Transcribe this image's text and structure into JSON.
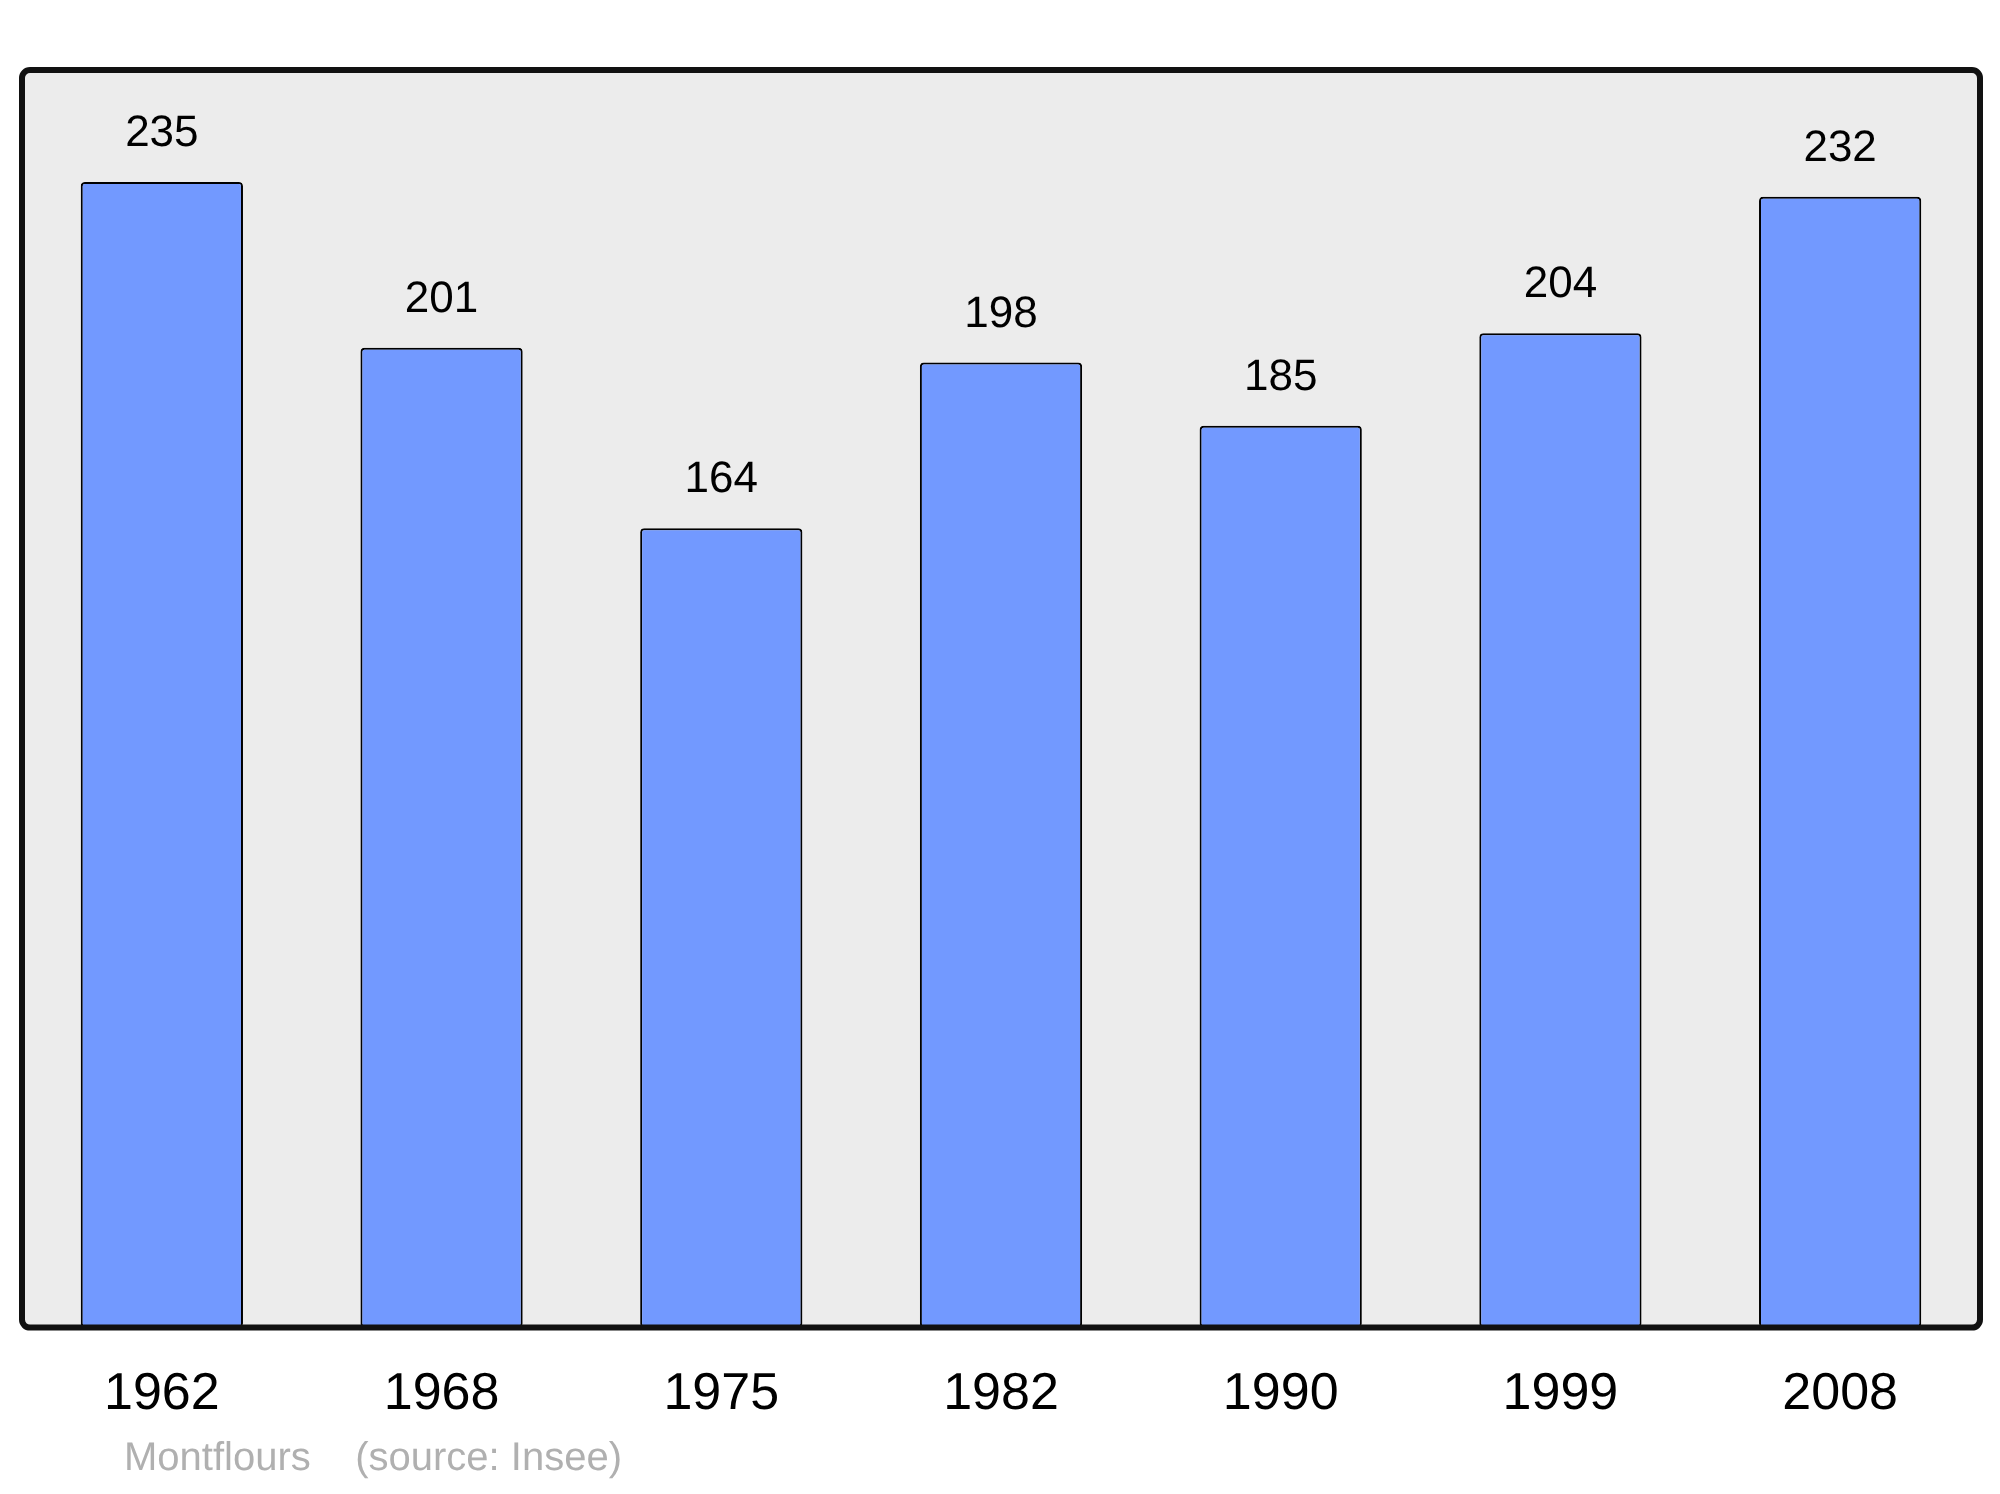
{
  "chart_data": {
    "type": "bar",
    "categories": [
      "1962",
      "1968",
      "1975",
      "1982",
      "1990",
      "1999",
      "2008"
    ],
    "values": [
      235,
      201,
      164,
      198,
      185,
      204,
      232
    ],
    "color": "#7299ff",
    "ylim": [
      0,
      258
    ],
    "tick_labels": "x",
    "grid": false,
    "legend": false,
    "data_labels": true,
    "annotations": [
      "Montflours    (source: Insee)"
    ]
  }
}
